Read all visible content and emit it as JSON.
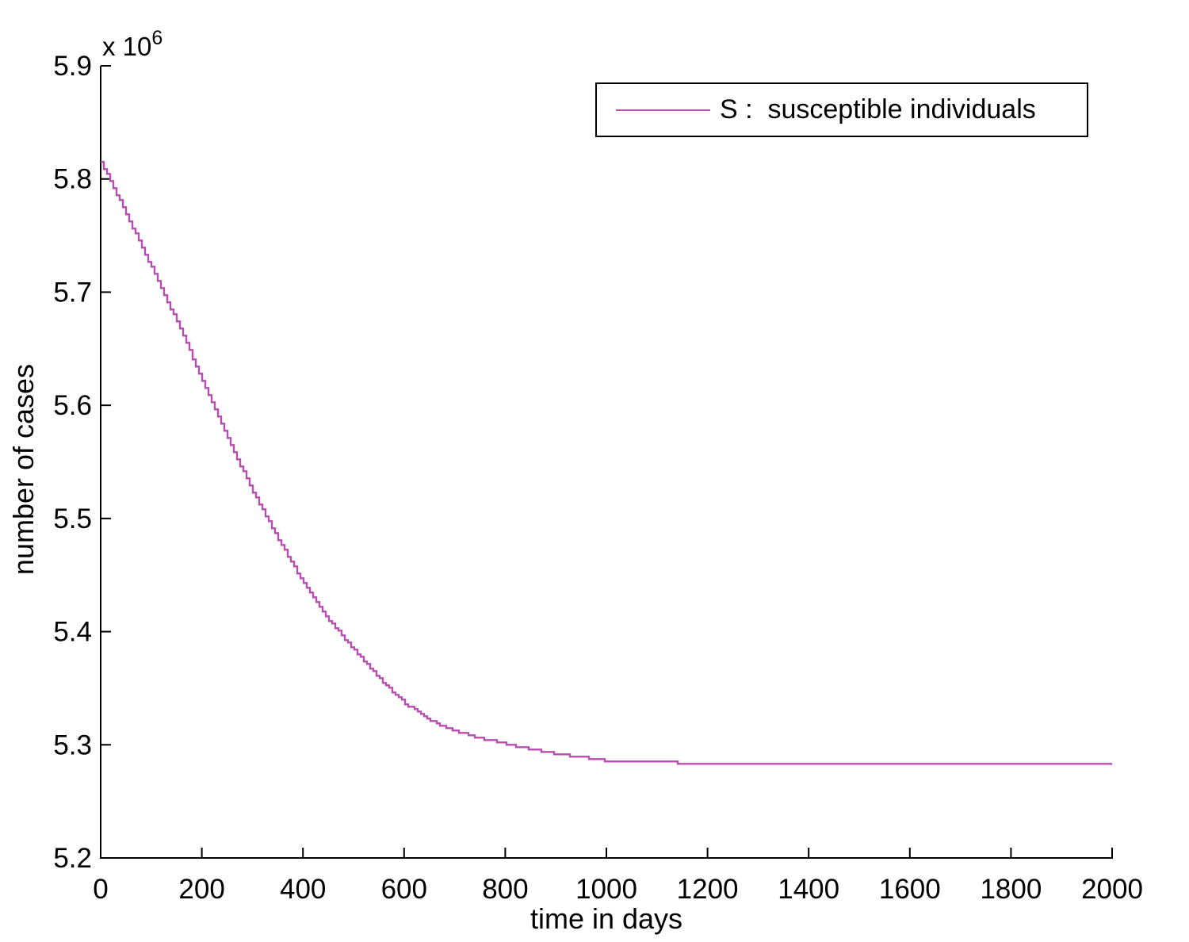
{
  "chart_data": {
    "type": "line",
    "line_style": "stairs",
    "title": "",
    "xlabel": "time in days",
    "ylabel": "number of cases",
    "y_axis_multiplier": {
      "base": "x 10",
      "exponent": "6"
    },
    "xlim": [
      0,
      2000
    ],
    "ylim": [
      5200000,
      5900000
    ],
    "xticks": [
      0,
      200,
      400,
      600,
      800,
      1000,
      1200,
      1400,
      1600,
      1800,
      2000
    ],
    "yticks": [
      5200000,
      5300000,
      5400000,
      5500000,
      5600000,
      5700000,
      5800000,
      5900000
    ],
    "ytick_labels": [
      "5.2",
      "5.3",
      "5.4",
      "5.5",
      "5.6",
      "5.7",
      "5.8",
      "5.9"
    ],
    "grid": false,
    "box": false,
    "axis_color": "#000000",
    "legend": {
      "position": "top-right",
      "border_color": "#000000",
      "entries": [
        {
          "label": "S :  susceptible individuals",
          "color": "#b84db0"
        }
      ]
    },
    "series": [
      {
        "name": "S",
        "color": "#b84db0",
        "points": [
          [
            0,
            5815000
          ],
          [
            50,
            5769000
          ],
          [
            100,
            5722000
          ],
          [
            150,
            5674000
          ],
          [
            200,
            5623000
          ],
          [
            250,
            5571000
          ],
          [
            300,
            5524000
          ],
          [
            350,
            5482000
          ],
          [
            400,
            5443000
          ],
          [
            450,
            5411000
          ],
          [
            500,
            5384000
          ],
          [
            550,
            5359000
          ],
          [
            600,
            5337000
          ],
          [
            650,
            5322000
          ],
          [
            700,
            5312000
          ],
          [
            750,
            5306000
          ],
          [
            800,
            5301000
          ],
          [
            850,
            5296000
          ],
          [
            900,
            5292000
          ],
          [
            950,
            5289000
          ],
          [
            1000,
            5286000
          ],
          [
            1050,
            5285000
          ],
          [
            1100,
            5285000
          ],
          [
            1150,
            5284000
          ],
          [
            1200,
            5283000
          ],
          [
            1300,
            5283000
          ],
          [
            1400,
            5283000
          ],
          [
            1500,
            5283000
          ],
          [
            1600,
            5283000
          ],
          [
            1700,
            5283000
          ],
          [
            1800,
            5283000
          ],
          [
            1900,
            5283000
          ],
          [
            2000,
            5283000
          ]
        ]
      }
    ]
  }
}
